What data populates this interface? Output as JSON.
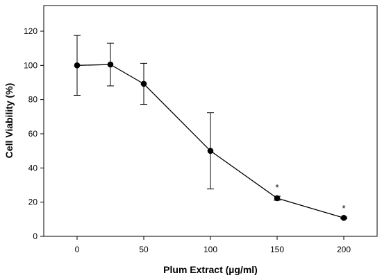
{
  "chart_data": {
    "type": "line",
    "title": "",
    "xlabel": "Plum Extract (µg/ml)",
    "ylabel": "Cell Viability (%)",
    "xlim": [
      -25,
      225
    ],
    "ylim": [
      0,
      135
    ],
    "x_ticks": [
      0,
      50,
      100,
      150,
      200
    ],
    "y_ticks": [
      0,
      20,
      40,
      60,
      80,
      100,
      120
    ],
    "grid": false,
    "legend": "none",
    "color": "#000000",
    "series": [
      {
        "x": [
          0,
          25,
          50,
          100,
          150,
          200
        ],
        "y": [
          100.0,
          100.5,
          89.2,
          50.0,
          22.3,
          10.8
        ],
        "err": [
          17.5,
          12.5,
          12.0,
          22.3,
          1.2,
          0.5
        ],
        "annotations": [
          "",
          "",
          "",
          "",
          "*",
          "*"
        ]
      }
    ]
  }
}
